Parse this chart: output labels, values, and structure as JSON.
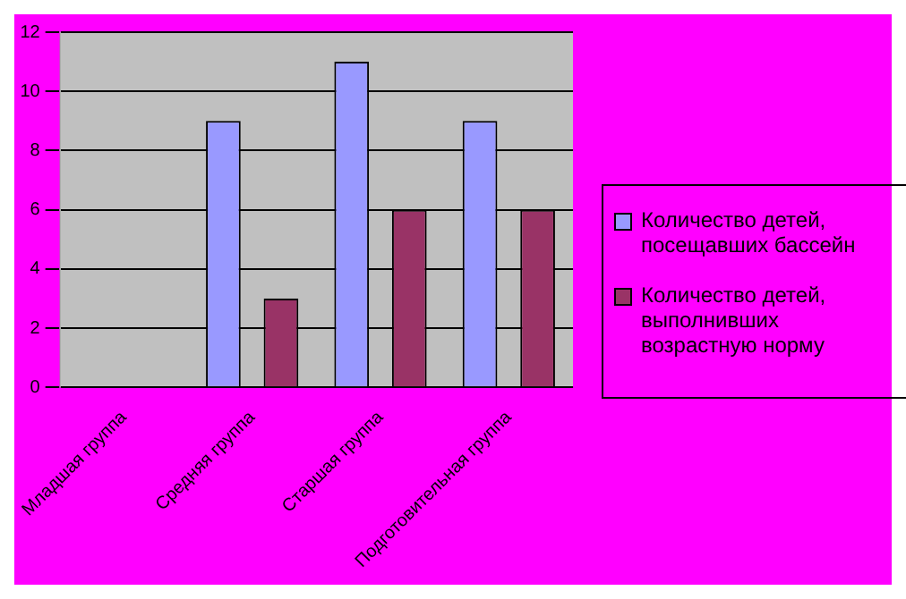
{
  "chart_data": {
    "type": "bar",
    "categories": [
      "Младшая группа",
      "Средняя группа",
      "Старшая группа",
      "Подготовительная группа"
    ],
    "series": [
      {
        "name": "Количество детей, посещавших бассейн",
        "color": "#9999ff",
        "values": [
          0,
          9,
          11,
          9
        ]
      },
      {
        "name": "Количество детей, выполнивших возрастную норму",
        "color": "#993366",
        "values": [
          0,
          3,
          6,
          6
        ]
      }
    ],
    "ylim": [
      0,
      12
    ],
    "yticks": [
      0,
      2,
      4,
      6,
      8,
      10,
      12
    ],
    "grid": "y",
    "legend": "right"
  }
}
